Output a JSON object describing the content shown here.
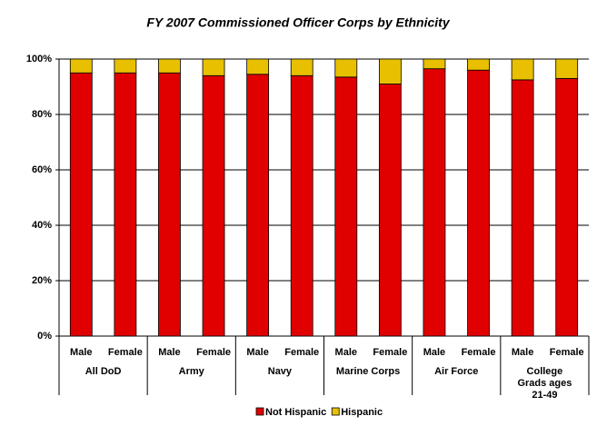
{
  "chart_data": {
    "type": "stacked_bar",
    "title": "FY 2007 Commissioned Officer Corps by Ethnicity",
    "categories": [
      "Male",
      "Female",
      "Male",
      "Female",
      "Male",
      "Female",
      "Male",
      "Female",
      "Male",
      "Female",
      "Male",
      "Female"
    ],
    "groups": [
      "All DoD",
      "Army",
      "Navy",
      "Marine Corps",
      "Air Force",
      "College Grads ages 21-49"
    ],
    "series": [
      {
        "name": "Not Hispanic",
        "color": "#e00000",
        "values": [
          95,
          95,
          95,
          94,
          94.5,
          94,
          93.5,
          91,
          96.5,
          96,
          92.5,
          93
        ]
      },
      {
        "name": "Hispanic",
        "color": "#e8c000",
        "values": [
          5,
          5,
          5,
          6,
          5.5,
          6,
          6.5,
          9,
          3.5,
          4,
          7.5,
          7
        ]
      }
    ],
    "ylim": [
      0,
      100
    ],
    "yticks": [
      {
        "value": 0,
        "label": "0%"
      },
      {
        "value": 20,
        "label": "20%"
      },
      {
        "value": 40,
        "label": "40%"
      },
      {
        "value": 60,
        "label": "60%"
      },
      {
        "value": 80,
        "label": "80%"
      },
      {
        "value": 100,
        "label": "100%"
      }
    ],
    "grid": true,
    "legend": "bottom"
  }
}
